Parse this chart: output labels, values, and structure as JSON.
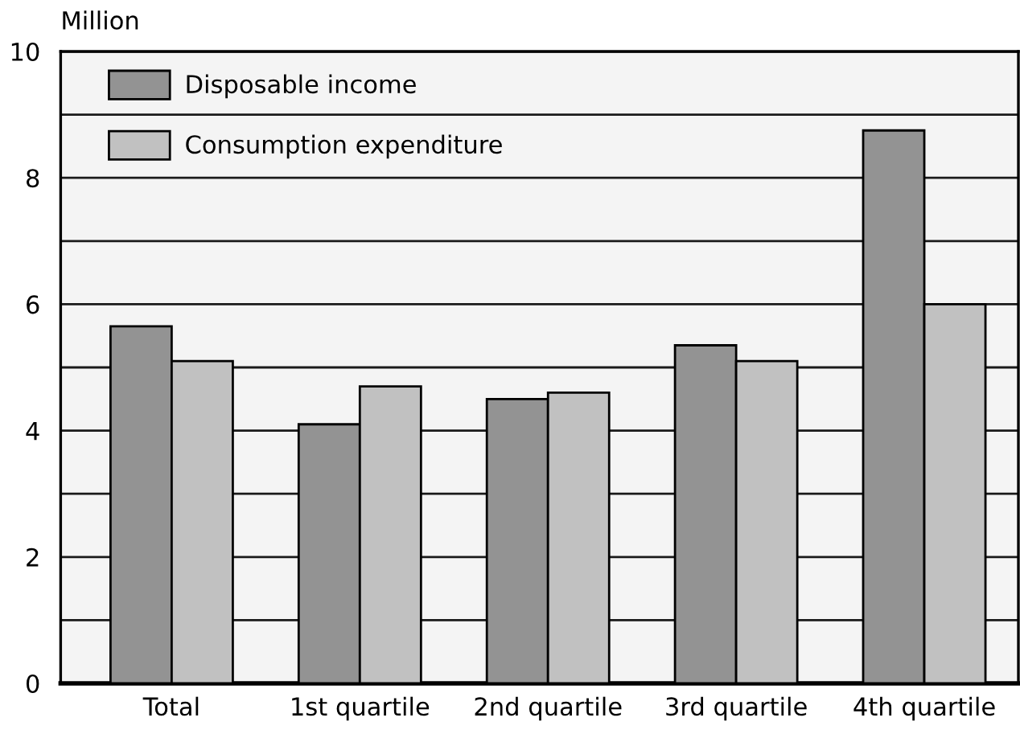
{
  "chart_data": {
    "type": "bar",
    "ylabel": "Million",
    "categories": [
      "Total",
      "1st quartile",
      "2nd quartile",
      "3rd quartile",
      "4th quartile"
    ],
    "series": [
      {
        "name": "Disposable income",
        "color": "#939393",
        "values": [
          5.65,
          4.1,
          4.5,
          5.35,
          8.75
        ]
      },
      {
        "name": "Consumption expenditure",
        "color": "#c1c1c1",
        "values": [
          5.1,
          4.7,
          4.6,
          5.1,
          6.0
        ]
      }
    ],
    "ylim": [
      0,
      10
    ],
    "yticks": [
      0,
      {
        "value": 1,
        "label": null
      },
      2,
      {
        "value": 3,
        "label": null
      },
      4,
      {
        "value": 5,
        "label": null
      },
      6,
      {
        "value": 7,
        "label": null
      },
      8,
      {
        "value": 9,
        "label": null
      },
      10
    ],
    "grid": "y",
    "legend": "top left"
  }
}
